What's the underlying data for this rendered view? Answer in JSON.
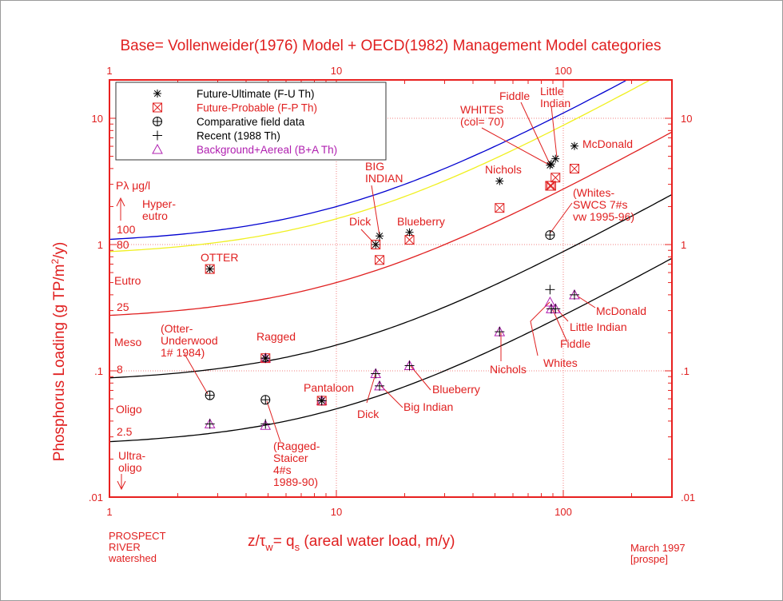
{
  "chart_data": {
    "type": "scatter",
    "title": "Base= Vollenweider(1976) Model + OECD(1982) Management Model categories",
    "xlabel": "z/τw= qs (areal water load, m/y)",
    "ylabel": "Phosphorus Loading (g TP/m²/y)",
    "x_scale": "log",
    "y_scale": "log",
    "xlim": [
      1,
      300
    ],
    "ylim": [
      0.01,
      20
    ],
    "x_ticks": [
      "1",
      "10",
      "100"
    ],
    "y_ticks_left": [
      ".01",
      ".1",
      "1",
      "10"
    ],
    "y_ticks_right": [
      ".01",
      ".1",
      "1",
      "10"
    ],
    "grid": "dotted at decades",
    "legend_placement": "top-left",
    "colors": {
      "axes": "#e8201f",
      "text": "#e02020",
      "p100": "#0000d0",
      "p80": "#f0f020",
      "p25": "#e02020",
      "p8": "#000000",
      "p2_5": "#000000",
      "ba": "#b020b0"
    },
    "model_curves": [
      {
        "label": "100",
        "P_ug_l": 100,
        "color": "#0000d0"
      },
      {
        "label": "80",
        "P_ug_l": 80,
        "color": "#f0f020"
      },
      {
        "label": "25",
        "P_ug_l": 25,
        "color": "#e02020"
      },
      {
        "label": "8",
        "P_ug_l": 8,
        "color": "#000000"
      },
      {
        "label": "2.5",
        "P_ug_l": 2.5,
        "color": "#000000"
      }
    ],
    "trophic_labels": [
      "Pλ  μg/l",
      "Hyper-",
      "eutro",
      "Eutro",
      "Meso",
      "Oligo",
      "Ultra-",
      "oligo"
    ],
    "legend": [
      {
        "name": "Future-Ultimate (F-U Th)",
        "marker": "asterisk",
        "color": "#000000"
      },
      {
        "name": "Future-Probable (F-P Th)",
        "marker": "boxed-x",
        "color": "#e02020"
      },
      {
        "name": "Comparative field data",
        "marker": "circle-plus",
        "color": "#000000"
      },
      {
        "name": "Recent (1988 Th)",
        "marker": "plus",
        "color": "#000000"
      },
      {
        "name": "Background+Aereal (B+A Th)",
        "marker": "triangle",
        "color": "#b020b0"
      }
    ],
    "series": [
      {
        "name": "Future-Ultimate (F-U Th)",
        "points": [
          {
            "lake": "Otter",
            "x": 2.77,
            "y": 0.64
          },
          {
            "lake": "Ragged",
            "x": 4.87,
            "y": 0.126
          },
          {
            "lake": "Pantaloon",
            "x": 8.62,
            "y": 0.058
          },
          {
            "lake": "Dick",
            "x": 14.9,
            "y": 1.0
          },
          {
            "lake": "Big Indian",
            "x": 15.5,
            "y": 1.17
          },
          {
            "lake": "Blueberry",
            "x": 21.0,
            "y": 1.25
          },
          {
            "lake": "Nichols",
            "x": 52.4,
            "y": 3.18
          },
          {
            "lake": "Whites",
            "x": 87.4,
            "y": 4.25
          },
          {
            "lake": "Fiddle",
            "x": 88.5,
            "y": 4.35
          },
          {
            "lake": "Little Indian",
            "x": 92.4,
            "y": 4.78
          },
          {
            "lake": "McDonald",
            "x": 112,
            "y": 6.03
          }
        ]
      },
      {
        "name": "Future-Probable (F-P Th)",
        "points": [
          {
            "lake": "Otter",
            "x": 2.77,
            "y": 0.64
          },
          {
            "lake": "Ragged",
            "x": 4.87,
            "y": 0.126
          },
          {
            "lake": "Pantaloon",
            "x": 8.62,
            "y": 0.058
          },
          {
            "lake": "Dick",
            "x": 14.9,
            "y": 1.0
          },
          {
            "lake": "Big Indian",
            "x": 15.5,
            "y": 0.755
          },
          {
            "lake": "Blueberry",
            "x": 21.0,
            "y": 1.09
          },
          {
            "lake": "Nichols",
            "x": 52.4,
            "y": 1.95
          },
          {
            "lake": "Whites",
            "x": 87.4,
            "y": 2.92
          },
          {
            "lake": "Fiddle",
            "x": 88.5,
            "y": 2.92
          },
          {
            "lake": "Little Indian",
            "x": 92.4,
            "y": 3.39
          },
          {
            "lake": "McDonald",
            "x": 112,
            "y": 3.99
          }
        ]
      },
      {
        "name": "Comparative field data",
        "points": [
          {
            "lake": "Otter-Underwood 1# 1984",
            "x": 2.77,
            "y": 0.064
          },
          {
            "lake": "Ragged-Staicer 4#s 1989-90",
            "x": 4.87,
            "y": 0.059
          },
          {
            "lake": "Whites-SWCS 7#s vw 1995-96",
            "x": 87.4,
            "y": 1.19
          }
        ]
      },
      {
        "name": "Recent (1988 Th)",
        "points": [
          {
            "lake": "Otter",
            "x": 2.77,
            "y": 0.038
          },
          {
            "lake": "Ragged",
            "x": 4.87,
            "y": 0.038
          },
          {
            "lake": "Ragged",
            "x": 4.87,
            "y": 0.126
          },
          {
            "lake": "Pantaloon",
            "x": 8.62,
            "y": 0.058
          },
          {
            "lake": "Dick",
            "x": 14.9,
            "y": 0.095
          },
          {
            "lake": "Big Indian",
            "x": 15.5,
            "y": 0.076
          },
          {
            "lake": "Blueberry",
            "x": 21.0,
            "y": 0.11
          },
          {
            "lake": "Nichols",
            "x": 52.4,
            "y": 0.204
          },
          {
            "lake": "Whites",
            "x": 87.4,
            "y": 0.44
          },
          {
            "lake": "Fiddle",
            "x": 88.5,
            "y": 0.31
          },
          {
            "lake": "Little Indian",
            "x": 92.4,
            "y": 0.31
          },
          {
            "lake": "McDonald",
            "x": 112,
            "y": 0.4
          }
        ]
      },
      {
        "name": "Background+Aereal (B+A Th)",
        "points": [
          {
            "lake": "Otter",
            "x": 2.77,
            "y": 0.038
          },
          {
            "lake": "Ragged",
            "x": 4.87,
            "y": 0.037
          },
          {
            "lake": "Ragged",
            "x": 4.87,
            "y": 0.126
          },
          {
            "lake": "Pantaloon",
            "x": 8.62,
            "y": 0.058
          },
          {
            "lake": "Dick",
            "x": 14.9,
            "y": 0.095
          },
          {
            "lake": "Big Indian",
            "x": 15.5,
            "y": 0.076
          },
          {
            "lake": "Blueberry",
            "x": 21.0,
            "y": 0.11
          },
          {
            "lake": "Nichols",
            "x": 52.4,
            "y": 0.204
          },
          {
            "lake": "Whites",
            "x": 87.4,
            "y": 0.35
          },
          {
            "lake": "Fiddle",
            "x": 88.5,
            "y": 0.31
          },
          {
            "lake": "Little Indian",
            "x": 92.4,
            "y": 0.31
          },
          {
            "lake": "McDonald",
            "x": 112,
            "y": 0.4
          }
        ]
      }
    ],
    "annotations": [
      "OTTER",
      "BIG\nINDIAN",
      "Dick",
      "Blueberry",
      "Nichols",
      "WHITES\n(col= 70)",
      "Fiddle",
      "Little\nIndian",
      "McDonald",
      "(Whites-\nSWCS 7#s\nvw 1995-96)",
      "(Otter-\nUnderwood\n1#  1984)",
      "Ragged",
      "Pantaloon",
      "Dick",
      "Big Indian",
      "Blueberry",
      "Nichols",
      "Whites",
      "Fiddle",
      "Little Indian",
      "McDonald",
      "(Ragged-\nStaicer\n4#s\n1989-90)"
    ]
  },
  "footer": {
    "left_note": "PROSPECT\nRIVER\nwatershed",
    "right_note": "March 1997\n[prospe]"
  }
}
